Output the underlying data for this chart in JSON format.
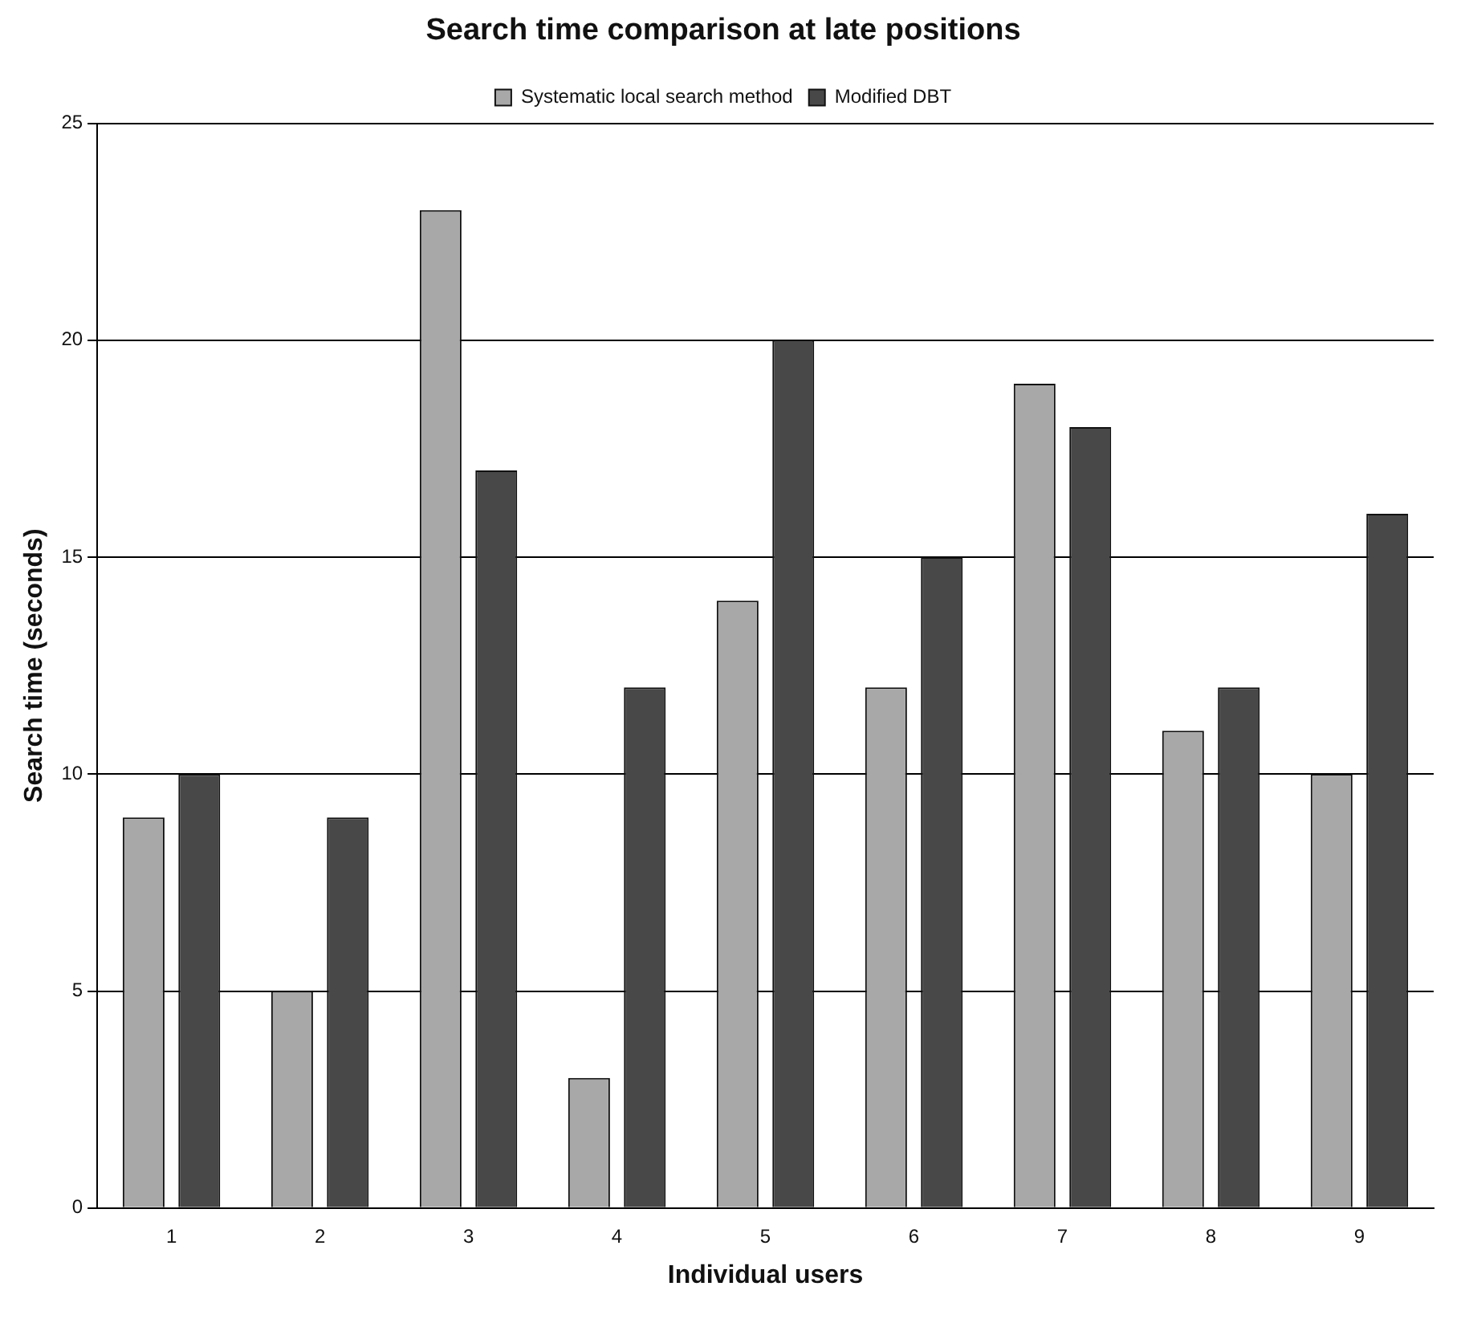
{
  "chart_data": {
    "type": "bar",
    "title": "Search time comparison at late positions",
    "xlabel": "Individual users",
    "ylabel": "Search time (seconds)",
    "categories": [
      "1",
      "2",
      "3",
      "4",
      "5",
      "6",
      "7",
      "8",
      "9"
    ],
    "series": [
      {
        "name": "Systematic local search method",
        "color": "#a8a8a8",
        "values": [
          9,
          5,
          23,
          3,
          14,
          12,
          19,
          11,
          10
        ]
      },
      {
        "name": "Modified DBT",
        "color": "#484848",
        "values": [
          10,
          9,
          17,
          12,
          20,
          15,
          18,
          12,
          16
        ]
      }
    ],
    "ylim": [
      0,
      25
    ],
    "yticks": [
      0,
      5,
      10,
      15,
      20,
      25
    ],
    "grid": "y",
    "legend": "top"
  }
}
